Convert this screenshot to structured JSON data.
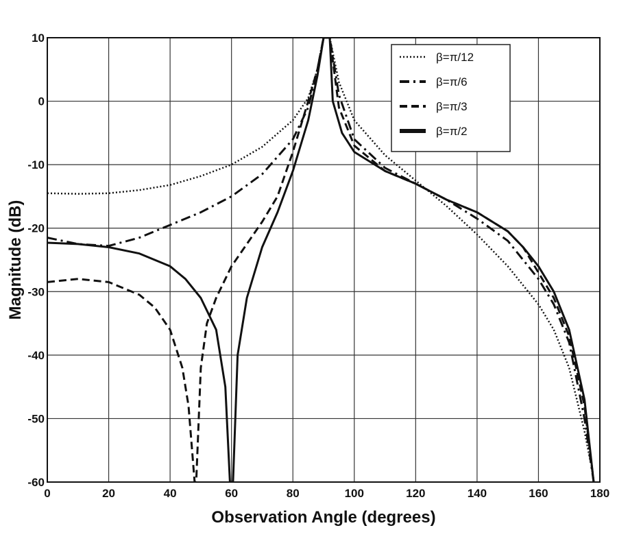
{
  "chart_data": {
    "type": "line",
    "title": "",
    "xlabel": "Observation Angle (degrees)",
    "ylabel": "Magnitude (dB)",
    "xlim": [
      0,
      180
    ],
    "ylim": [
      -60,
      10
    ],
    "xticks": [
      "0",
      "20",
      "40",
      "60",
      "80",
      "100",
      "120",
      "140",
      "160",
      "180"
    ],
    "yticks": [
      "10",
      "0",
      "-10",
      "-20",
      "-30",
      "-40",
      "-50",
      "-60"
    ],
    "grid": true,
    "legend_position": "top-right",
    "series": [
      {
        "name": "β=π/12",
        "style": "dotted",
        "x": [
          0,
          10,
          20,
          30,
          40,
          50,
          60,
          70,
          80,
          85,
          88,
          90,
          92,
          95,
          100,
          110,
          120,
          130,
          140,
          150,
          160,
          165,
          170,
          175,
          177
        ],
        "y": [
          -14.5,
          -14.6,
          -14.5,
          -14,
          -13.2,
          -11.8,
          -10,
          -7.2,
          -3,
          0.5,
          5,
          10,
          10,
          3,
          -3,
          -8.5,
          -12.5,
          -16.5,
          -21,
          -26,
          -32,
          -36,
          -42,
          -52,
          -57
        ]
      },
      {
        "name": "β=π/6",
        "style": "dashdot",
        "x": [
          0,
          10,
          20,
          30,
          40,
          50,
          60,
          70,
          80,
          85,
          88,
          90,
          92,
          95,
          100,
          110,
          120,
          130,
          140,
          150,
          160,
          165,
          170,
          175,
          178
        ],
        "y": [
          -21.5,
          -22.5,
          -22.8,
          -21.5,
          -19.5,
          -17.5,
          -15,
          -11.5,
          -6,
          -1,
          5,
          10,
          10,
          1,
          -6,
          -10.5,
          -13,
          -15.5,
          -18.5,
          -22,
          -28,
          -32,
          -38,
          -50,
          -60
        ]
      },
      {
        "name": "β=π/3",
        "style": "dashed",
        "x": [
          0,
          10,
          20,
          30,
          35,
          40,
          44,
          46,
          48,
          48.5,
          50,
          52,
          55,
          60,
          70,
          75,
          80,
          85,
          88,
          90,
          92,
          95,
          100,
          110,
          120,
          130,
          140,
          150,
          155,
          160,
          165,
          170,
          175,
          178
        ],
        "y": [
          -28.5,
          -28,
          -28.5,
          -30.5,
          -32.5,
          -36,
          -42,
          -48,
          -60,
          -60,
          -42,
          -35,
          -31,
          -26,
          -19,
          -15,
          -8,
          0,
          5,
          10,
          10,
          -1,
          -7,
          -11,
          -13,
          -15.5,
          -17.5,
          -20.5,
          -23,
          -27,
          -31,
          -37,
          -48,
          -60
        ]
      },
      {
        "name": "β=π/2",
        "style": "solid",
        "x": [
          0,
          10,
          20,
          30,
          40,
          45,
          50,
          55,
          58,
          59.5,
          60.5,
          62,
          65,
          70,
          75,
          80,
          85,
          88,
          90,
          92,
          93,
          96,
          100,
          110,
          120,
          130,
          140,
          150,
          155,
          160,
          165,
          170,
          175,
          178
        ],
        "y": [
          -22.3,
          -22.5,
          -23,
          -24,
          -26,
          -28,
          -31,
          -36,
          -45,
          -60,
          -60,
          -40,
          -31,
          -23,
          -17.5,
          -11,
          -3,
          4,
          10,
          10,
          0,
          -5,
          -8,
          -11,
          -13,
          -15.5,
          -17.5,
          -20.5,
          -23,
          -26,
          -30,
          -36,
          -47,
          -60
        ]
      }
    ]
  }
}
